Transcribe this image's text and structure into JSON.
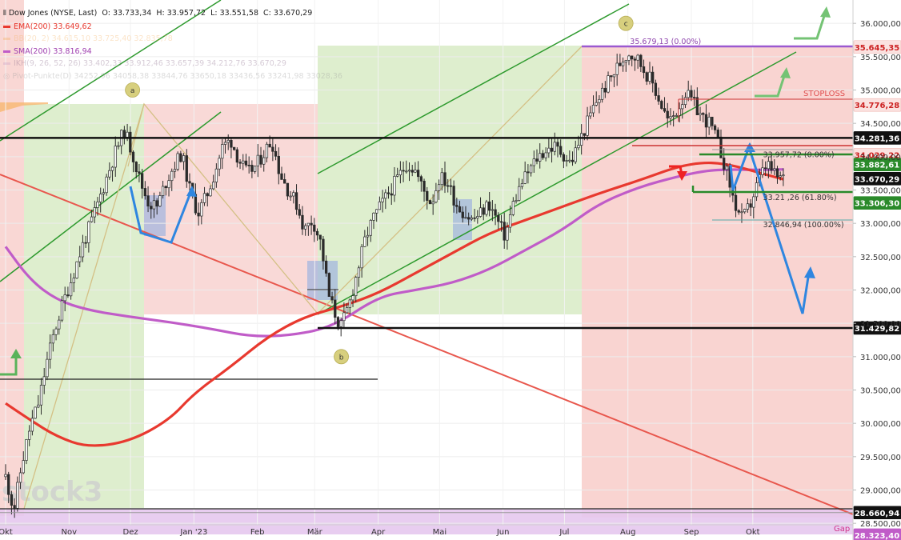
{
  "chart_data": {
    "type": "candlestick",
    "instrument": "Dow Jones (NYSE, Last)",
    "quote": {
      "open": "O: 33.733,34",
      "high": "H: 33.957,72",
      "low": "L: 33.551,58",
      "close": "C: 33.670,29"
    },
    "ylim": [
      28250,
      36350
    ],
    "y_ticks": [
      "36.000,00",
      "35.500,00",
      "35.000,00",
      "34.500,00",
      "34.000,00",
      "33.500,00",
      "33.000,00",
      "32.500,00",
      "32.000,00",
      "31.500,00",
      "31.000,00",
      "30.500,00",
      "30.000,00",
      "29.500,00",
      "29.000,00",
      "28.500,00"
    ],
    "y_tick_values": [
      36000,
      35500,
      35000,
      34500,
      34000,
      33500,
      33000,
      32500,
      32000,
      31500,
      31000,
      30500,
      30000,
      29500,
      29000,
      28500
    ],
    "x_ticks": [
      "Okt",
      "Nov",
      "Dez",
      "Jan '23",
      "Feb",
      "Mär",
      "Apr",
      "Mai",
      "Jun",
      "Jul",
      "Aug",
      "Sep",
      "Okt"
    ],
    "x_tick_days": [
      0,
      31,
      61,
      92,
      123,
      151,
      182,
      212,
      243,
      273,
      304,
      335,
      365
    ],
    "x_range_days": [
      0,
      403
    ],
    "indicators": [
      {
        "label": "EMA(200)",
        "value": "33.649,62",
        "color": "#e8392f"
      },
      {
        "label": "BB(20, 2)",
        "value": "34.615,10  33.725,40  32.835,78",
        "color": "#f5b062"
      },
      {
        "label": "SMA(200)",
        "value": "33.816,94",
        "color": "#c05cc8"
      },
      {
        "label": "IKH(9, 26, 52, 26)",
        "value": "33.402,33  33.912,46  33.657,39  34.212,76  33.670,29",
        "color": "#c9a0c8"
      },
      {
        "label": "Pivot-Punkte(D)",
        "value": "34252,96  34058,38  33844,76  33650,18  33436,56  33241,98  33028,36",
        "color": "#cccccc"
      }
    ],
    "ema200": [
      [
        0,
        30300
      ],
      [
        12,
        30050
      ],
      [
        25,
        29800
      ],
      [
        40,
        29640
      ],
      [
        60,
        29720
      ],
      [
        80,
        30050
      ],
      [
        92,
        30450
      ],
      [
        110,
        30850
      ],
      [
        128,
        31300
      ],
      [
        146,
        31600
      ],
      [
        164,
        31750
      ],
      [
        182,
        31950
      ],
      [
        200,
        32250
      ],
      [
        218,
        32550
      ],
      [
        236,
        32850
      ],
      [
        254,
        33050
      ],
      [
        272,
        33250
      ],
      [
        290,
        33450
      ],
      [
        310,
        33650
      ],
      [
        328,
        33850
      ],
      [
        342,
        33920
      ],
      [
        354,
        33880
      ],
      [
        368,
        33760
      ],
      [
        380,
        33660
      ]
    ],
    "sma200": [
      [
        0,
        32650
      ],
      [
        12,
        32150
      ],
      [
        25,
        31850
      ],
      [
        40,
        31700
      ],
      [
        60,
        31600
      ],
      [
        80,
        31520
      ],
      [
        100,
        31420
      ],
      [
        120,
        31300
      ],
      [
        140,
        31320
      ],
      [
        160,
        31450
      ],
      [
        182,
        31900
      ],
      [
        200,
        32000
      ],
      [
        218,
        32100
      ],
      [
        236,
        32300
      ],
      [
        254,
        32600
      ],
      [
        272,
        32900
      ],
      [
        290,
        33300
      ],
      [
        310,
        33550
      ],
      [
        328,
        33700
      ],
      [
        342,
        33790
      ],
      [
        354,
        33810
      ],
      [
        368,
        33800
      ],
      [
        380,
        33810
      ]
    ],
    "price_path": [
      [
        0,
        29200
      ],
      [
        4,
        28700
      ],
      [
        8,
        29400
      ],
      [
        12,
        29950
      ],
      [
        16,
        30300
      ],
      [
        20,
        30900
      ],
      [
        24,
        31400
      ],
      [
        28,
        31800
      ],
      [
        32,
        32150
      ],
      [
        38,
        32700
      ],
      [
        44,
        33200
      ],
      [
        50,
        33750
      ],
      [
        54,
        34100
      ],
      [
        58,
        34400
      ],
      [
        62,
        34050
      ],
      [
        66,
        33600
      ],
      [
        70,
        33300
      ],
      [
        74,
        33250
      ],
      [
        78,
        33600
      ],
      [
        82,
        33850
      ],
      [
        86,
        34050
      ],
      [
        90,
        33500
      ],
      [
        94,
        33150
      ],
      [
        98,
        33400
      ],
      [
        102,
        33750
      ],
      [
        106,
        34150
      ],
      [
        110,
        34250
      ],
      [
        114,
        33950
      ],
      [
        118,
        33750
      ],
      [
        122,
        33850
      ],
      [
        126,
        34050
      ],
      [
        130,
        34250
      ],
      [
        134,
        33750
      ],
      [
        138,
        33500
      ],
      [
        142,
        33300
      ],
      [
        146,
        32900
      ],
      [
        150,
        33050
      ],
      [
        154,
        32700
      ],
      [
        158,
        31900
      ],
      [
        162,
        31550
      ],
      [
        164,
        31450
      ],
      [
        168,
        31800
      ],
      [
        172,
        32300
      ],
      [
        176,
        32800
      ],
      [
        180,
        33100
      ],
      [
        184,
        33300
      ],
      [
        188,
        33500
      ],
      [
        192,
        33700
      ],
      [
        196,
        33900
      ],
      [
        200,
        33800
      ],
      [
        204,
        33500
      ],
      [
        208,
        33300
      ],
      [
        212,
        33700
      ],
      [
        216,
        33600
      ],
      [
        220,
        33300
      ],
      [
        224,
        33150
      ],
      [
        228,
        33050
      ],
      [
        232,
        33150
      ],
      [
        236,
        33300
      ],
      [
        240,
        33050
      ],
      [
        244,
        32800
      ],
      [
        248,
        33300
      ],
      [
        252,
        33600
      ],
      [
        256,
        33800
      ],
      [
        260,
        34000
      ],
      [
        264,
        34100
      ],
      [
        268,
        34150
      ],
      [
        272,
        34050
      ],
      [
        276,
        33900
      ],
      [
        280,
        34200
      ],
      [
        284,
        34500
      ],
      [
        288,
        34800
      ],
      [
        292,
        35000
      ],
      [
        296,
        35200
      ],
      [
        300,
        35400
      ],
      [
        304,
        35560
      ],
      [
        308,
        35500
      ],
      [
        312,
        35300
      ],
      [
        316,
        35100
      ],
      [
        320,
        34800
      ],
      [
        324,
        34500
      ],
      [
        328,
        34700
      ],
      [
        332,
        34950
      ],
      [
        336,
        34800
      ],
      [
        340,
        34600
      ],
      [
        344,
        34500
      ],
      [
        348,
        34200
      ],
      [
        352,
        33800
      ],
      [
        356,
        33300
      ],
      [
        360,
        33050
      ],
      [
        364,
        33300
      ],
      [
        368,
        33650
      ],
      [
        372,
        33900
      ],
      [
        376,
        33700
      ],
      [
        380,
        33670
      ]
    ],
    "highlight_levels": [
      {
        "label": "35.645,35",
        "value": 35645,
        "color": "#9b59d0",
        "text_color": "#cc2222",
        "bg": "#fbe2e0"
      },
      {
        "label": "34.776,28",
        "value": 34776,
        "color": "#cc3333",
        "text_color": "#cc2222",
        "bg": "#fbe2e0"
      },
      {
        "label": "34.281,36",
        "value": 34281,
        "color": "#111111",
        "text_color": "#ffffff",
        "bg": "#111111"
      },
      {
        "label": "34.029,22",
        "value": 34029,
        "color": "#cc3333",
        "text_color": "#cc2222",
        "bg": "#fbe2e0"
      },
      {
        "label": "33.882,61",
        "value": 33882,
        "color": "#2a8a2a",
        "text_color": "#ffffff",
        "bg": "#2a8a2a"
      },
      {
        "label": "33.670,29",
        "value": 33670,
        "color": "#111111",
        "text_color": "#ffffff",
        "bg": "#111111"
      },
      {
        "label": "33.306,30",
        "value": 33306,
        "color": "#2a8a2a",
        "text_color": "#ffffff",
        "bg": "#2a8a2a"
      },
      {
        "label": "31.429,82",
        "value": 31430,
        "color": "#111111",
        "text_color": "#ffffff",
        "bg": "#111111"
      },
      {
        "label": "28.660,94",
        "value": 28661,
        "color": "#111111",
        "text_color": "#ffffff",
        "bg": "#111111"
      },
      {
        "label": "28.323,40",
        "value": 28323,
        "color": "#c05cc8",
        "text_color": "#ffffff",
        "bg": "#c05cc8"
      }
    ],
    "annotations": {
      "swing_labels": [
        {
          "text": "a",
          "day": 62,
          "value": 35000
        },
        {
          "text": "b",
          "day": 164,
          "value": 31000
        },
        {
          "text": "c",
          "day": 303,
          "value": 36000
        }
      ],
      "stoploss": "STOPLOSS",
      "fib_labels": [
        {
          "text": "35.679,13 (0.00%)",
          "day": 305,
          "value": 35690,
          "color": "#8e44ad"
        },
        {
          "text": "33.957,72 (0.00%)",
          "day": 370,
          "value": 33990,
          "color": "#333333"
        },
        {
          "text": "33.21  ,26 (61.80%)",
          "day": 370,
          "value": 33350,
          "color": "#333333"
        },
        {
          "text": "32.846,94 (100.00%)",
          "day": 370,
          "value": 32940,
          "color": "#333333"
        }
      ],
      "gap_label": "Gap",
      "watermark": "stock3"
    }
  }
}
